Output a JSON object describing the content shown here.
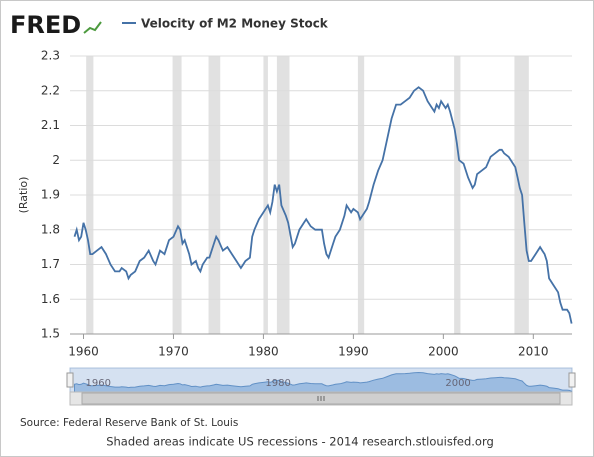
{
  "logo": "FRED",
  "chart_data": {
    "type": "line",
    "legend": "Velocity of M2 Money Stock",
    "y_label": "(Ratio)",
    "source": "Source: Federal Reserve Bank of St. Louis",
    "footer": "Shaded areas indicate US recessions - 2014 research.stlouisfed.org",
    "color": "#4572a7",
    "recession_color": "#e1e1e1",
    "recessions": [
      [
        1960.3,
        1961.1
      ],
      [
        1969.9,
        1970.9
      ],
      [
        1973.9,
        1975.2
      ],
      [
        1980.0,
        1980.5
      ],
      [
        1981.5,
        1982.9
      ],
      [
        1990.5,
        1991.2
      ],
      [
        2001.2,
        2001.9
      ],
      [
        2007.9,
        2009.5
      ]
    ],
    "x": [
      1959.0,
      1959.25,
      1959.5,
      1959.75,
      1960.0,
      1960.25,
      1960.5,
      1960.75,
      1961.0,
      1961.5,
      1962.0,
      1962.5,
      1963.0,
      1963.5,
      1964.0,
      1964.25,
      1964.75,
      1965.0,
      1965.25,
      1965.75,
      1966.25,
      1966.75,
      1967.25,
      1967.75,
      1968.0,
      1968.5,
      1969.0,
      1969.5,
      1970.0,
      1970.5,
      1970.75,
      1971.0,
      1971.25,
      1971.75,
      1972.0,
      1972.5,
      1972.75,
      1973.0,
      1973.25,
      1973.75,
      1974.0,
      1974.5,
      1974.75,
      1975.0,
      1975.5,
      1976.0,
      1976.5,
      1977.0,
      1977.5,
      1977.75,
      1978.0,
      1978.5,
      1978.75,
      1979.0,
      1979.5,
      1980.0,
      1980.5,
      1980.75,
      1981.0,
      1981.25,
      1981.5,
      1981.75,
      1982.0,
      1982.5,
      1982.75,
      1983.25,
      1983.5,
      1984.0,
      1984.5,
      1984.75,
      1985.25,
      1985.75,
      1986.5,
      1986.75,
      1987.0,
      1987.25,
      1987.75,
      1988.0,
      1988.5,
      1989.0,
      1989.25,
      1989.75,
      1990.0,
      1990.5,
      1990.75,
      1991.0,
      1991.5,
      1991.75,
      1992.25,
      1992.75,
      1993.25,
      1993.75,
      1994.25,
      1994.75,
      1995.25,
      1995.75,
      1996.25,
      1996.75,
      1997.25,
      1997.75,
      1998.25,
      1998.75,
      1999.0,
      1999.25,
      1999.5,
      1999.75,
      2000.25,
      2000.5,
      2000.75,
      2001.25,
      2001.5,
      2001.75,
      2002.25,
      2002.75,
      2003.25,
      2003.5,
      2003.75,
      2004.25,
      2004.75,
      2005.25,
      2005.75,
      2006.25,
      2006.5,
      2006.75,
      2007.25,
      2007.75,
      2008.0,
      2008.25,
      2008.5,
      2008.75,
      2009.0,
      2009.25,
      2009.5,
      2009.75,
      2010.25,
      2010.75,
      2011.0,
      2011.25,
      2011.5,
      2011.75,
      2012.25,
      2012.75,
      2013.0,
      2013.25,
      2013.75,
      2014.0,
      2014.25
    ],
    "values": [
      1.78,
      1.8,
      1.77,
      1.78,
      1.82,
      1.8,
      1.77,
      1.73,
      1.73,
      1.74,
      1.75,
      1.73,
      1.7,
      1.68,
      1.68,
      1.69,
      1.68,
      1.66,
      1.67,
      1.68,
      1.71,
      1.72,
      1.74,
      1.71,
      1.7,
      1.74,
      1.73,
      1.77,
      1.78,
      1.81,
      1.8,
      1.76,
      1.77,
      1.73,
      1.7,
      1.71,
      1.69,
      1.68,
      1.7,
      1.72,
      1.72,
      1.76,
      1.78,
      1.77,
      1.74,
      1.75,
      1.73,
      1.71,
      1.69,
      1.7,
      1.71,
      1.72,
      1.78,
      1.8,
      1.83,
      1.85,
      1.87,
      1.85,
      1.88,
      1.93,
      1.91,
      1.93,
      1.87,
      1.84,
      1.82,
      1.75,
      1.76,
      1.8,
      1.82,
      1.83,
      1.81,
      1.8,
      1.8,
      1.76,
      1.73,
      1.72,
      1.76,
      1.78,
      1.8,
      1.84,
      1.87,
      1.85,
      1.86,
      1.85,
      1.83,
      1.84,
      1.86,
      1.88,
      1.93,
      1.97,
      2.0,
      2.06,
      2.12,
      2.16,
      2.16,
      2.17,
      2.18,
      2.2,
      2.21,
      2.2,
      2.17,
      2.15,
      2.14,
      2.16,
      2.15,
      2.17,
      2.15,
      2.16,
      2.14,
      2.09,
      2.05,
      2.0,
      1.99,
      1.95,
      1.92,
      1.93,
      1.96,
      1.97,
      1.98,
      2.01,
      2.02,
      2.03,
      2.03,
      2.02,
      2.01,
      1.99,
      1.98,
      1.95,
      1.92,
      1.9,
      1.82,
      1.74,
      1.71,
      1.71,
      1.73,
      1.75,
      1.74,
      1.73,
      1.71,
      1.66,
      1.64,
      1.62,
      1.59,
      1.57,
      1.57,
      1.56,
      1.53
    ],
    "xlim": [
      1958.5,
      2014.3
    ],
    "ylim": [
      1.5,
      2.3
    ],
    "xticks": [
      1960,
      1970,
      1980,
      1990,
      2000,
      2010
    ],
    "yticks": [
      1.5,
      1.6,
      1.7,
      1.8,
      1.9,
      2.0,
      2.1,
      2.2,
      2.3
    ],
    "grid": true,
    "navigator_ticks": [
      1960,
      1980,
      2000
    ]
  }
}
